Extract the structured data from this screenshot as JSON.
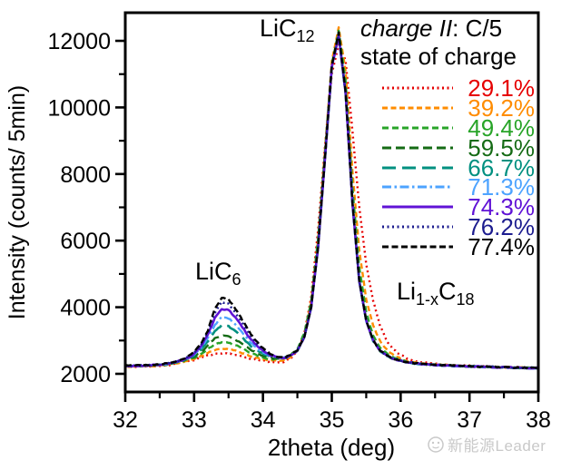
{
  "watermark": {
    "text": "新能源Leader"
  },
  "chart_data": {
    "type": "line",
    "legend_title_italic": "charge II",
    "legend_title_rest": ": C/5",
    "legend_subtitle": "state of charge",
    "legend_position": "top-right",
    "xlabel": "2theta (deg)",
    "ylabel": "Intensity (counts/ 5min)",
    "xlim": [
      32,
      38
    ],
    "ylim": [
      1455,
      12845
    ],
    "x_ticks": [
      32,
      33,
      34,
      35,
      36,
      37,
      38
    ],
    "y_ticks": [
      2000,
      4000,
      6000,
      8000,
      10000,
      12000
    ],
    "x_minor_step": 0.5,
    "y_minor_step": 1000,
    "grid": false,
    "x_start": 32.0,
    "x_step": 0.1,
    "annotations": [
      {
        "name": "lic12",
        "segments": [
          {
            "t": "LiC"
          },
          {
            "sub": "12"
          }
        ]
      },
      {
        "name": "lic6",
        "segments": [
          {
            "t": "LiC"
          },
          {
            "sub": "6"
          }
        ]
      },
      {
        "name": "li1xc18",
        "segments": [
          {
            "t": "Li"
          },
          {
            "sub": "1-x"
          },
          {
            "t": "C"
          },
          {
            "sub": "18"
          }
        ]
      }
    ],
    "series": [
      {
        "name": "29.1%",
        "color": "#e60000",
        "dash": [
          2,
          3.5
        ],
        "width": 2.4,
        "values": [
          2210,
          2208,
          2215,
          2220,
          2228,
          2242,
          2258,
          2285,
          2330,
          2380,
          2420,
          2480,
          2550,
          2600,
          2620,
          2610,
          2570,
          2520,
          2470,
          2430,
          2390,
          2360,
          2350,
          2360,
          2450,
          2680,
          3200,
          4300,
          6300,
          8800,
          11000,
          11900,
          11400,
          9300,
          7000,
          5300,
          4200,
          3450,
          2980,
          2720,
          2560,
          2460,
          2400,
          2350,
          2320,
          2300,
          2285,
          2270,
          2258,
          2248,
          2240,
          2232,
          2225,
          2218,
          2212,
          2206,
          2200,
          2195,
          2190,
          2185,
          2180
        ]
      },
      {
        "name": "39.2%",
        "color": "#ff8c00",
        "dash": [
          6,
          3.5
        ],
        "width": 2.4,
        "values": [
          2218,
          2216,
          2222,
          2228,
          2238,
          2252,
          2270,
          2298,
          2345,
          2400,
          2450,
          2530,
          2630,
          2720,
          2750,
          2740,
          2690,
          2620,
          2550,
          2490,
          2440,
          2400,
          2400,
          2410,
          2500,
          2700,
          3180,
          4150,
          6000,
          8700,
          11400,
          12400,
          11100,
          8100,
          5700,
          4250,
          3450,
          2980,
          2720,
          2560,
          2460,
          2390,
          2340,
          2310,
          2295,
          2280,
          2268,
          2256,
          2246,
          2238,
          2230,
          2222,
          2215,
          2208,
          2202,
          2196,
          2191,
          2186,
          2181,
          2177,
          2173
        ]
      },
      {
        "name": "49.4%",
        "color": "#28a428",
        "dash": [
          7,
          4
        ],
        "width": 2.4,
        "values": [
          2225,
          2223,
          2230,
          2236,
          2246,
          2262,
          2282,
          2315,
          2365,
          2420,
          2480,
          2590,
          2740,
          2890,
          2950,
          2940,
          2860,
          2760,
          2650,
          2560,
          2490,
          2440,
          2440,
          2450,
          2560,
          2760,
          3220,
          4180,
          6050,
          8650,
          11300,
          12300,
          10800,
          7600,
          5200,
          3850,
          3150,
          2800,
          2600,
          2480,
          2410,
          2360,
          2320,
          2300,
          2285,
          2272,
          2260,
          2250,
          2240,
          2232,
          2225,
          2218,
          2211,
          2205,
          2199,
          2194,
          2189,
          2184,
          2179,
          2175,
          2171
        ]
      },
      {
        "name": "59.5%",
        "color": "#156b15",
        "dash": [
          10,
          5
        ],
        "width": 2.4,
        "values": [
          2230,
          2228,
          2235,
          2242,
          2252,
          2268,
          2290,
          2325,
          2378,
          2430,
          2510,
          2650,
          2850,
          3060,
          3150,
          3140,
          3030,
          2890,
          2750,
          2630,
          2540,
          2470,
          2470,
          2460,
          2540,
          2700,
          3100,
          4000,
          5800,
          8450,
          11200,
          12200,
          10400,
          7100,
          4760,
          3580,
          2990,
          2690,
          2540,
          2440,
          2390,
          2340,
          2310,
          2290,
          2278,
          2266,
          2256,
          2246,
          2237,
          2230,
          2223,
          2216,
          2210,
          2204,
          2198,
          2193,
          2188,
          2183,
          2178,
          2174,
          2170
        ]
      },
      {
        "name": "66.7%",
        "color": "#009080",
        "dash": [
          15,
          7
        ],
        "width": 2.6,
        "values": [
          2232,
          2230,
          2238,
          2245,
          2255,
          2272,
          2295,
          2330,
          2385,
          2450,
          2540,
          2720,
          2980,
          3280,
          3450,
          3430,
          3280,
          3080,
          2880,
          2720,
          2600,
          2510,
          2490,
          2470,
          2545,
          2700,
          3095,
          3995,
          5770,
          8420,
          11200,
          12150,
          10420,
          7120,
          4770,
          3590,
          2995,
          2695,
          2545,
          2445,
          2392,
          2342,
          2312,
          2292,
          2280,
          2268,
          2257,
          2247,
          2238,
          2231,
          2224,
          2217,
          2211,
          2205,
          2199,
          2194,
          2189,
          2184,
          2179,
          2175,
          2171
        ]
      },
      {
        "name": "71.3%",
        "color": "#4da3ff",
        "dash": [
          10,
          3.5,
          2.5,
          3.5
        ],
        "width": 2.4,
        "values": [
          2235,
          2233,
          2240,
          2248,
          2258,
          2276,
          2300,
          2336,
          2390,
          2460,
          2570,
          2780,
          3080,
          3470,
          3700,
          3670,
          3480,
          3240,
          2990,
          2790,
          2650,
          2540,
          2500,
          2475,
          2548,
          2702,
          3098,
          3998,
          5775,
          8430,
          11220,
          12100,
          10430,
          7130,
          4775,
          3595,
          3000,
          2698,
          2548,
          2448,
          2394,
          2344,
          2314,
          2294,
          2282,
          2270,
          2258,
          2248,
          2239,
          2232,
          2225,
          2218,
          2212,
          2206,
          2200,
          2195,
          2190,
          2185,
          2180,
          2176,
          2172
        ]
      },
      {
        "name": "74.3%",
        "color": "#6013d6",
        "dash": [],
        "width": 2.6,
        "values": [
          2238,
          2236,
          2243,
          2250,
          2260,
          2278,
          2303,
          2340,
          2394,
          2470,
          2600,
          2830,
          3180,
          3680,
          3950,
          3920,
          3690,
          3400,
          3100,
          2870,
          2700,
          2570,
          2505,
          2478,
          2550,
          2705,
          3100,
          4000,
          5780,
          8440,
          11230,
          12150,
          10440,
          7140,
          4780,
          3600,
          3005,
          2700,
          2550,
          2450,
          2396,
          2346,
          2316,
          2296,
          2284,
          2272,
          2260,
          2250,
          2240,
          2233,
          2226,
          2219,
          2213,
          2207,
          2201,
          2196,
          2191,
          2186,
          2181,
          2177,
          2173
        ]
      },
      {
        "name": "76.2%",
        "color": "#1c1c8f",
        "dash": [
          2,
          3.5
        ],
        "width": 2.4,
        "values": [
          2242,
          2240,
          2247,
          2254,
          2264,
          2282,
          2307,
          2345,
          2400,
          2490,
          2630,
          2870,
          3250,
          3840,
          4150,
          4110,
          3850,
          3530,
          3200,
          2930,
          2730,
          2590,
          2508,
          2480,
          2552,
          2708,
          3102,
          4002,
          5785,
          8450,
          11240,
          12200,
          10450,
          7150,
          4785,
          3605,
          3008,
          2702,
          2552,
          2452,
          2398,
          2348,
          2318,
          2298,
          2286,
          2274,
          2262,
          2252,
          2242,
          2234,
          2227,
          2220,
          2214,
          2208,
          2202,
          2197,
          2192,
          2187,
          2182,
          2178,
          2174
        ]
      },
      {
        "name": "77.4%",
        "color": "#000000",
        "dash": [
          7,
          3.5
        ],
        "width": 2.4,
        "values": [
          2248,
          2246,
          2253,
          2260,
          2270,
          2288,
          2313,
          2352,
          2408,
          2500,
          2650,
          2900,
          3300,
          3950,
          4280,
          4230,
          3960,
          3620,
          3270,
          2980,
          2770,
          2610,
          2510,
          2482,
          2555,
          2710,
          3105,
          4005,
          5790,
          8460,
          11250,
          12250,
          10460,
          7160,
          4790,
          3610,
          3010,
          2705,
          2555,
          2455,
          2400,
          2350,
          2320,
          2300,
          2288,
          2276,
          2264,
          2254,
          2244,
          2236,
          2228,
          2221,
          2215,
          2209,
          2203,
          2198,
          2193,
          2188,
          2183,
          2179,
          2175
        ]
      }
    ]
  }
}
